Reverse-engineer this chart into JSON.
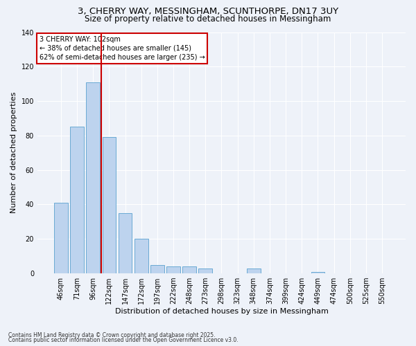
{
  "title1": "3, CHERRY WAY, MESSINGHAM, SCUNTHORPE, DN17 3UY",
  "title2": "Size of property relative to detached houses in Messingham",
  "xlabel": "Distribution of detached houses by size in Messingham",
  "ylabel": "Number of detached properties",
  "categories": [
    "46sqm",
    "71sqm",
    "96sqm",
    "122sqm",
    "147sqm",
    "172sqm",
    "197sqm",
    "222sqm",
    "248sqm",
    "273sqm",
    "298sqm",
    "323sqm",
    "348sqm",
    "374sqm",
    "399sqm",
    "424sqm",
    "449sqm",
    "474sqm",
    "500sqm",
    "525sqm",
    "550sqm"
  ],
  "values": [
    41,
    85,
    111,
    79,
    35,
    20,
    5,
    4,
    4,
    3,
    0,
    0,
    3,
    0,
    0,
    0,
    1,
    0,
    0,
    0,
    0
  ],
  "bar_color": "#bdd3ee",
  "bar_edge_color": "#6aaad4",
  "vline_x": 2.5,
  "vline_color": "#cc0000",
  "annotation_title": "3 CHERRY WAY: 102sqm",
  "annotation_line1": "← 38% of detached houses are smaller (145)",
  "annotation_line2": "62% of semi-detached houses are larger (235) →",
  "annotation_box_color": "#ffffff",
  "annotation_box_edgecolor": "#cc0000",
  "ylim": [
    0,
    140
  ],
  "yticks": [
    0,
    20,
    40,
    60,
    80,
    100,
    120,
    140
  ],
  "footnote1": "Contains HM Land Registry data © Crown copyright and database right 2025.",
  "footnote2": "Contains public sector information licensed under the Open Government Licence v3.0.",
  "bg_color": "#eef2f9",
  "grid_color": "#ffffff",
  "title_fontsize": 9.5,
  "subtitle_fontsize": 8.5,
  "tick_fontsize": 7,
  "ylabel_fontsize": 8,
  "xlabel_fontsize": 8,
  "annot_fontsize": 7,
  "footnote_fontsize": 5.5,
  "bar_width": 0.85
}
